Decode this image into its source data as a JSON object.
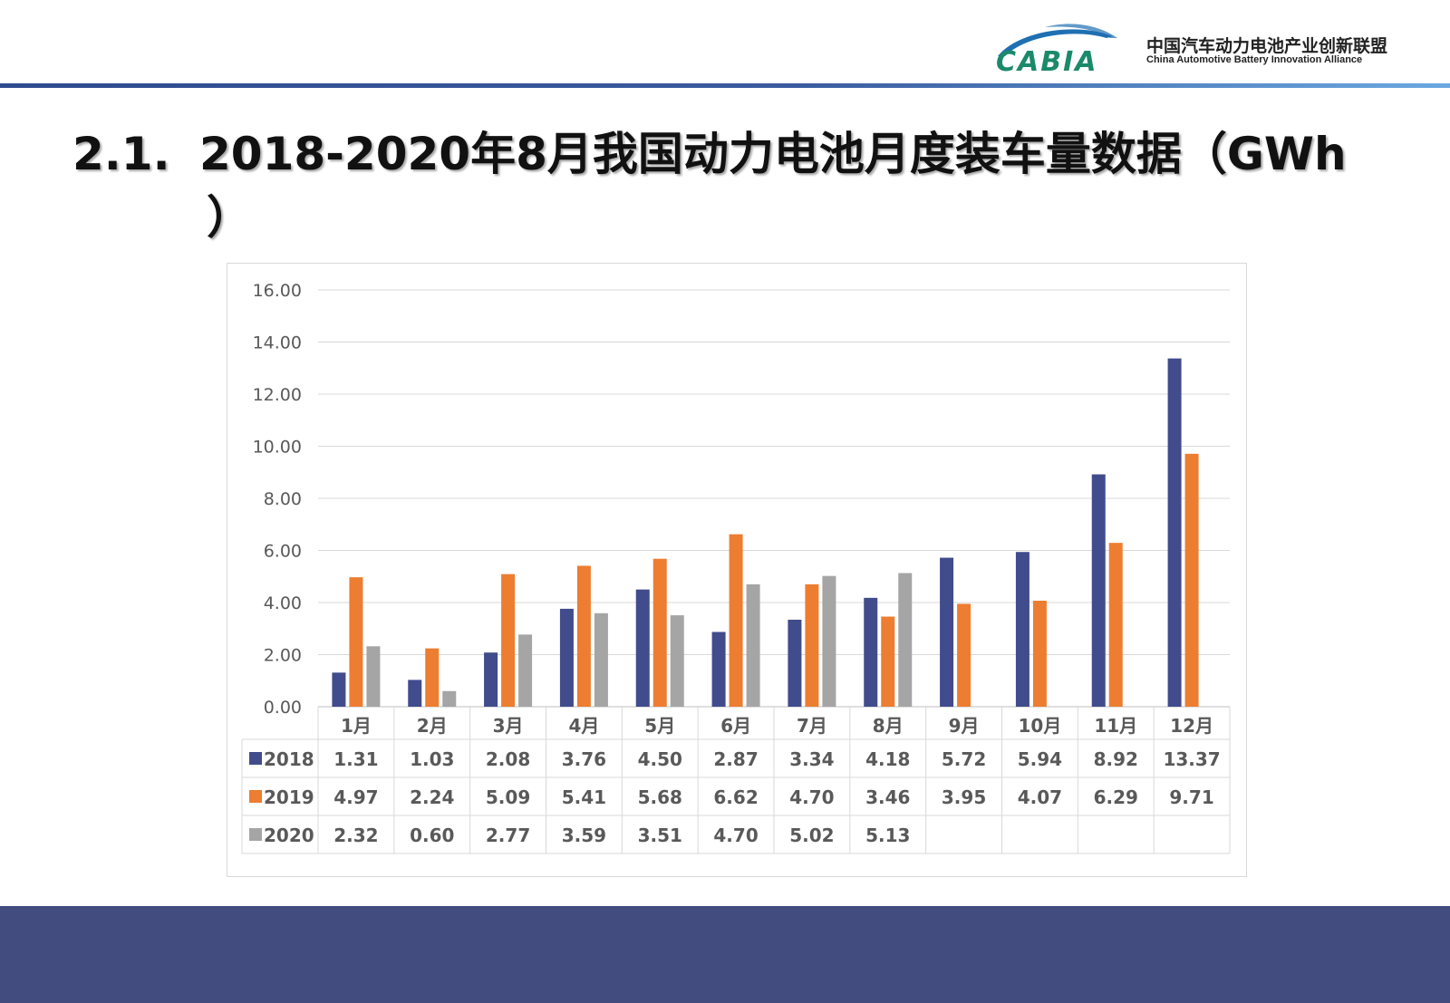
{
  "logo": {
    "mark_text": "CABIA",
    "name_cn": "中国汽车动力电池产业创新联盟",
    "name_en": "China Automotive Battery Innovation Alliance"
  },
  "title": {
    "number": "2.1.",
    "text_line1": "2018-2020年8月我国动力电池月度装车量数据（GWh",
    "text_line2": "）"
  },
  "colors": {
    "2018": "#414c8c",
    "2019": "#ed7d31",
    "2020": "#a5a5a5",
    "header_line": "#2e4b8f",
    "footer_band": "#424c7f"
  },
  "chart_data": {
    "type": "bar",
    "categories": [
      "1月",
      "2月",
      "3月",
      "4月",
      "5月",
      "6月",
      "7月",
      "8月",
      "9月",
      "10月",
      "11月",
      "12月"
    ],
    "series": [
      {
        "name": "2018",
        "values": [
          1.31,
          1.03,
          2.08,
          3.76,
          4.5,
          2.87,
          3.34,
          4.18,
          5.72,
          5.94,
          8.92,
          13.37
        ]
      },
      {
        "name": "2019",
        "values": [
          4.97,
          2.24,
          5.09,
          5.41,
          5.68,
          6.62,
          4.7,
          3.46,
          3.95,
          4.07,
          6.29,
          9.71
        ]
      },
      {
        "name": "2020",
        "values": [
          2.32,
          0.6,
          2.77,
          3.59,
          3.51,
          4.7,
          5.02,
          5.13,
          null,
          null,
          null,
          null
        ]
      }
    ],
    "y_ticks": [
      "0.00",
      "2.00",
      "4.00",
      "6.00",
      "8.00",
      "10.00",
      "12.00",
      "14.00",
      "16.00"
    ],
    "ylim": [
      0,
      16
    ],
    "grid": true,
    "data_table": true,
    "legend": "data-table"
  }
}
